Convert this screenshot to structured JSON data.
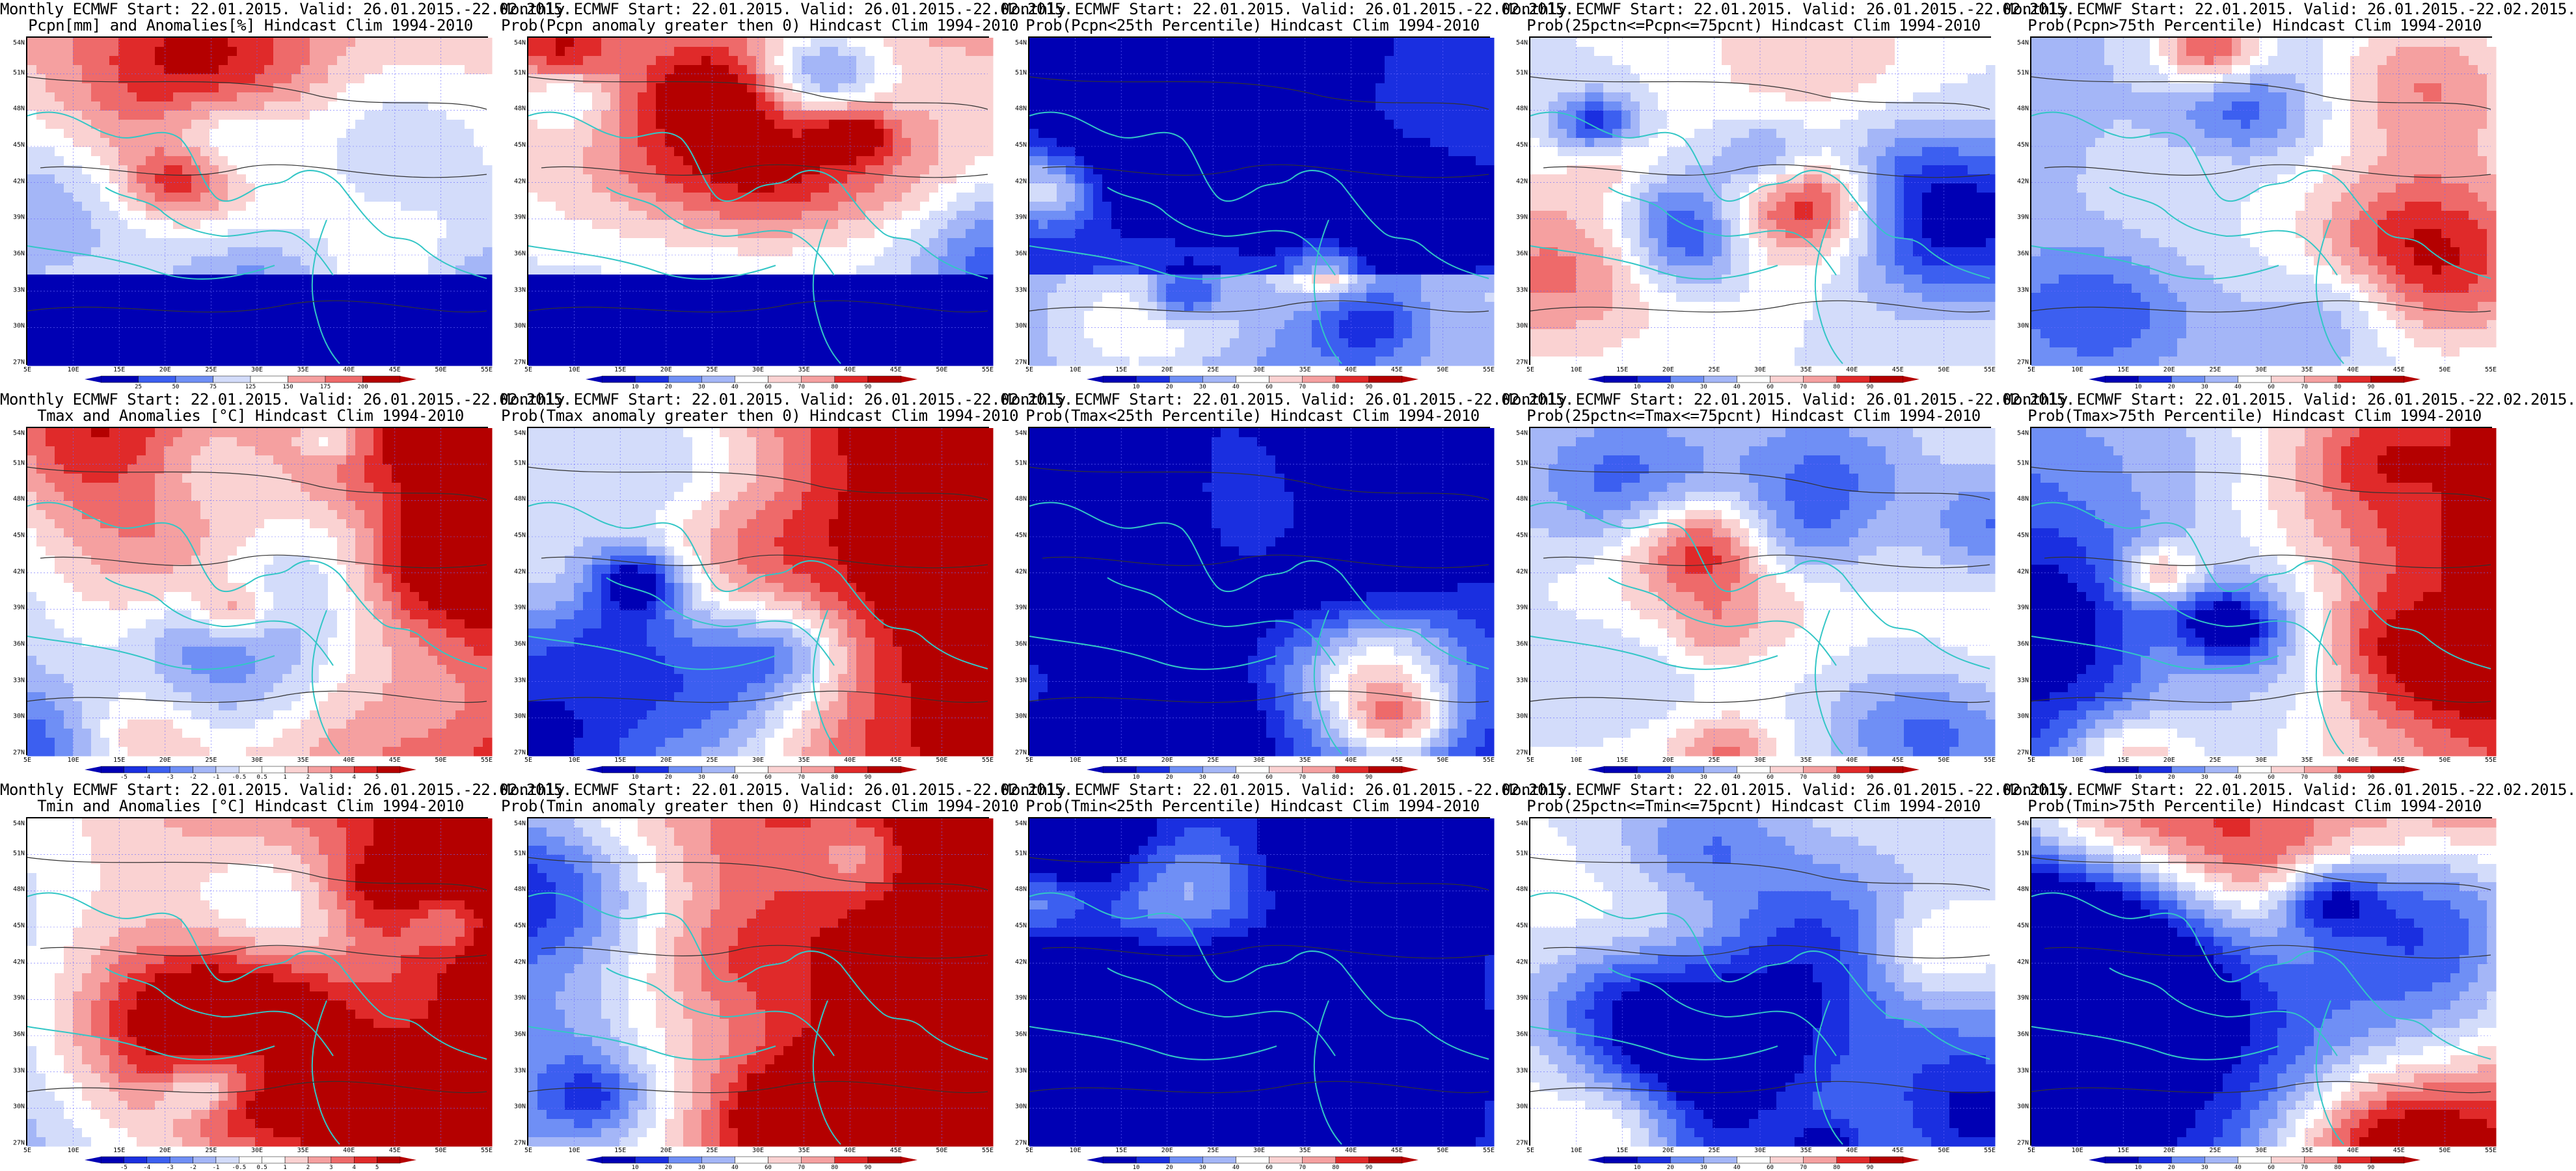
{
  "rows": [
    {
      "panels": [
        {
          "line1": "Monthly ECMWF Start: 22.01.2015. Valid: 26.01.2015.-22.02.2015.",
          "line2": "Pcpn[mm] and Anomalies[%] Hindcast Clim 1994-2010",
          "scheme": "anom",
          "seed": 1,
          "cbar": [
            "25",
            "50",
            "75",
            "125",
            "150",
            "175",
            "200"
          ]
        },
        {
          "line1": "Monthly ECMWF Start: 22.01.2015. Valid: 26.01.2015.-22.02.2015.",
          "line2": "Prob(Pcpn anomaly greater then 0) Hindcast Clim 1994-2010",
          "scheme": "prob",
          "seed": 2,
          "cbar": [
            "10",
            "20",
            "30",
            "40",
            "60",
            "70",
            "80",
            "90"
          ]
        },
        {
          "line1": "Monthly ECMWF Start: 22.01.2015. Valid: 26.01.2015.-22.02.2015.",
          "line2": "Prob(Pcpn<25th Percentile) Hindcast Clim 1994-2010",
          "scheme": "low",
          "seed": 3,
          "cbar": [
            "10",
            "20",
            "30",
            "40",
            "60",
            "70",
            "80",
            "90"
          ]
        },
        {
          "line1": "Monthly ECMWF Start: 22.01.2015. Valid: 26.01.2015.-22.02.2015.",
          "line2": "Prob(25pctn<=Pcpn<=75pcnt) Hindcast Clim 1994-2010",
          "scheme": "mid",
          "seed": 4,
          "cbar": [
            "10",
            "20",
            "30",
            "40",
            "60",
            "70",
            "80",
            "90"
          ]
        },
        {
          "line1": "Monthly ECMWF Start: 22.01.2015. Valid: 26.01.2015.-22.02.2015.",
          "line2": "Prob(Pcpn>75th Percentile) Hindcast Clim 1994-2010",
          "scheme": "high",
          "seed": 5,
          "cbar": [
            "10",
            "20",
            "30",
            "40",
            "60",
            "70",
            "80",
            "90"
          ]
        }
      ]
    },
    {
      "panels": [
        {
          "line1": "Monthly ECMWF Start: 22.01.2015. Valid: 26.01.2015.-22.02.2015.",
          "line2": "Tmax and Anomalies [°C] Hindcast Clim 1994-2010",
          "scheme": "warm",
          "seed": 6,
          "cbar": [
            "-5",
            "-4",
            "-3",
            "-2",
            "-1",
            "-0.5",
            "0.5",
            "1",
            "2",
            "3",
            "4",
            "5"
          ]
        },
        {
          "line1": "Monthly ECMWF Start: 22.01.2015. Valid: 26.01.2015.-22.02.2015.",
          "line2": "Prob(Tmax anomaly greater then 0) Hindcast Clim 1994-2010",
          "scheme": "warmprob",
          "seed": 7,
          "cbar": [
            "10",
            "20",
            "30",
            "40",
            "60",
            "70",
            "80",
            "90"
          ]
        },
        {
          "line1": "Monthly ECMWF Start: 22.01.2015. Valid: 26.01.2015.-22.02.2015.",
          "line2": "Prob(Tmax<25th Percentile) Hindcast Clim 1994-2010",
          "scheme": "cold",
          "seed": 8,
          "cbar": [
            "10",
            "20",
            "30",
            "40",
            "60",
            "70",
            "80",
            "90"
          ]
        },
        {
          "line1": "Monthly ECMWF Start: 22.01.2015. Valid: 26.01.2015.-22.02.2015.",
          "line2": "Prob(25pctn<=Tmax<=75pcnt) Hindcast Clim 1994-2010",
          "scheme": "mid",
          "seed": 9,
          "cbar": [
            "10",
            "20",
            "30",
            "40",
            "60",
            "70",
            "80",
            "90"
          ]
        },
        {
          "line1": "Monthly ECMWF Start: 22.01.2015. Valid: 26.01.2015.-22.02.2015.",
          "line2": "Prob(Tmax>75th Percentile) Hindcast Clim 1994-2010",
          "scheme": "warmhigh",
          "seed": 10,
          "cbar": [
            "10",
            "20",
            "30",
            "40",
            "60",
            "70",
            "80",
            "90"
          ]
        }
      ]
    },
    {
      "panels": [
        {
          "line1": "Monthly ECMWF Start: 22.01.2015. Valid: 26.01.2015.-22.02.2015.",
          "line2": "Tmin and Anomalies [°C] Hindcast Clim 1994-2010",
          "scheme": "warm",
          "seed": 11,
          "cbar": [
            "-5",
            "-4",
            "-3",
            "-2",
            "-1",
            "-0.5",
            "0.5",
            "1",
            "2",
            "3",
            "4",
            "5"
          ]
        },
        {
          "line1": "Monthly ECMWF Start: 22.01.2015. Valid: 26.01.2015.-22.02.2015.",
          "line2": "Prob(Tmin anomaly greater then 0) Hindcast Clim 1994-2010",
          "scheme": "warmprob",
          "seed": 12,
          "cbar": [
            "10",
            "20",
            "30",
            "40",
            "60",
            "70",
            "80",
            "90"
          ]
        },
        {
          "line1": "Monthly ECMWF Start: 22.01.2015. Valid: 26.01.2015.-22.02.2015.",
          "line2": "Prob(Tmin<25th Percentile) Hindcast Clim 1994-2010",
          "scheme": "cold",
          "seed": 13,
          "cbar": [
            "10",
            "20",
            "30",
            "40",
            "60",
            "70",
            "80",
            "90"
          ]
        },
        {
          "line1": "Monthly ECMWF Start: 22.01.2015. Valid: 26.01.2015.-22.02.2015.",
          "line2": "Prob(25pctn<=Tmin<=75pcnt) Hindcast Clim 1994-2010",
          "scheme": "mid",
          "seed": 14,
          "cbar": [
            "10",
            "20",
            "30",
            "40",
            "60",
            "70",
            "80",
            "90"
          ]
        },
        {
          "line1": "Monthly ECMWF Start: 22.01.2015. Valid: 26.01.2015.-22.02.2015.",
          "line2": "Prob(Tmin>75th Percentile) Hindcast Clim 1994-2010",
          "scheme": "warmhigh",
          "seed": 15,
          "cbar": [
            "10",
            "20",
            "30",
            "40",
            "60",
            "70",
            "80",
            "90"
          ]
        }
      ]
    }
  ],
  "axes": {
    "lat_labels": [
      "54N",
      "51N",
      "48N",
      "45N",
      "42N",
      "39N",
      "36N",
      "33N",
      "30N",
      "27N"
    ],
    "lon_labels": [
      "5E",
      "10E",
      "15E",
      "20E",
      "25E",
      "30E",
      "35E",
      "40E",
      "45E",
      "50E",
      "55E"
    ]
  },
  "colors": {
    "coast": "#33c6c6",
    "contour": "#333333",
    "palette": [
      "#0000b4",
      "#1a2fe0",
      "#3c5ff0",
      "#6f8ff5",
      "#a4b6f7",
      "#d3dcfa",
      "#ffffff",
      "#fad2d2",
      "#f5a0a0",
      "#ee6a6a",
      "#e02a2a",
      "#b40000"
    ]
  }
}
